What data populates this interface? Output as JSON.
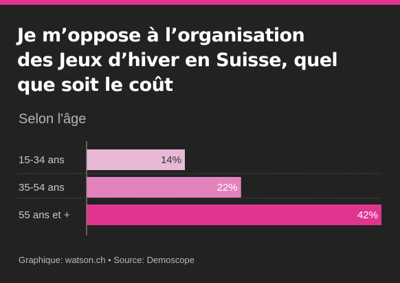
{
  "header": {
    "title_lines": [
      "Je m’oppose à l’organisation",
      "des Jeux d’hiver en Suisse, quel",
      "que soit le coût"
    ],
    "subtitle": "Selon l'âge"
  },
  "footer": {
    "source": "Graphique: watson.ch • Source: Demoscope"
  },
  "colors": {
    "accent": "#e0358f",
    "bars": [
      "#e8b9d5",
      "#e383be",
      "#e0358f"
    ],
    "value_text": [
      "#333333",
      "#ffffff",
      "#ffffff"
    ]
  },
  "chart_data": {
    "type": "bar",
    "orientation": "horizontal",
    "title": "Je m’oppose à l’organisation des Jeux d’hiver en Suisse, quel que soit le coût",
    "subtitle": "Selon l'âge",
    "categories": [
      "15-34 ans",
      "35-54 ans",
      "55 ans et +"
    ],
    "values": [
      14,
      22,
      42
    ],
    "value_labels": [
      "14%",
      "22%",
      "42%"
    ],
    "xlim": [
      0,
      42
    ],
    "grid": false
  }
}
